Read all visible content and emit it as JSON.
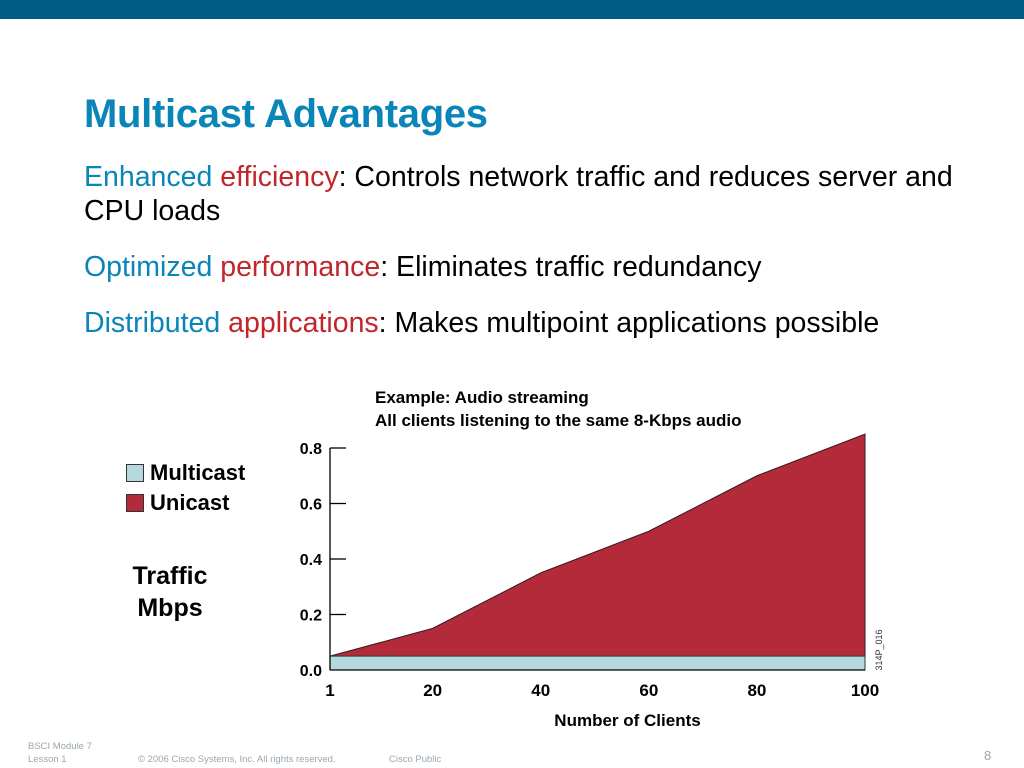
{
  "slide": {
    "title": "Multicast Advantages",
    "bullets": [
      {
        "term1": "Enhanced ",
        "term2": "efficiency",
        "text": ": Controls network traffic and reduces server and CPU loads"
      },
      {
        "term1": "Optimized ",
        "term2": "performance",
        "text": ": Eliminates traffic redundancy"
      },
      {
        "term1": "Distributed ",
        "term2": "applications",
        "text": ": Makes multipoint applications possible"
      }
    ]
  },
  "chart_data": {
    "type": "area",
    "title": "Example: Audio streaming",
    "subtitle": "All clients listening to the same 8-Kbps audio",
    "xlabel": "Number of Clients",
    "ylabel_line1": "Traffic",
    "ylabel_line2": "Mbps",
    "x_ticks": [
      "1",
      "20",
      "40",
      "60",
      "80",
      "100"
    ],
    "y_ticks": [
      "0.0",
      "0.2",
      "0.4",
      "0.6",
      "0.8"
    ],
    "ylim": [
      0,
      0.8
    ],
    "categories": [
      1,
      20,
      40,
      60,
      80,
      100
    ],
    "series": [
      {
        "name": "Multicast",
        "values": [
          0.05,
          0.05,
          0.05,
          0.05,
          0.05,
          0.05
        ],
        "color": "#b4d8de"
      },
      {
        "name": "Unicast",
        "values": [
          0.05,
          0.15,
          0.35,
          0.5,
          0.7,
          0.85
        ],
        "color": "#b32a3a"
      }
    ],
    "legend_position": "left",
    "grid": false,
    "watermark": "314P_016"
  },
  "footer": {
    "module": "BSCI Module 7",
    "lesson": "Lesson 1",
    "copyright": "© 2006 Cisco Systems, Inc. All rights reserved.",
    "classification": "Cisco Public",
    "page": "8"
  },
  "colors": {
    "header_bar": "#005b85",
    "title_blue": "#0a85b8",
    "accent_red": "#c0262b"
  }
}
